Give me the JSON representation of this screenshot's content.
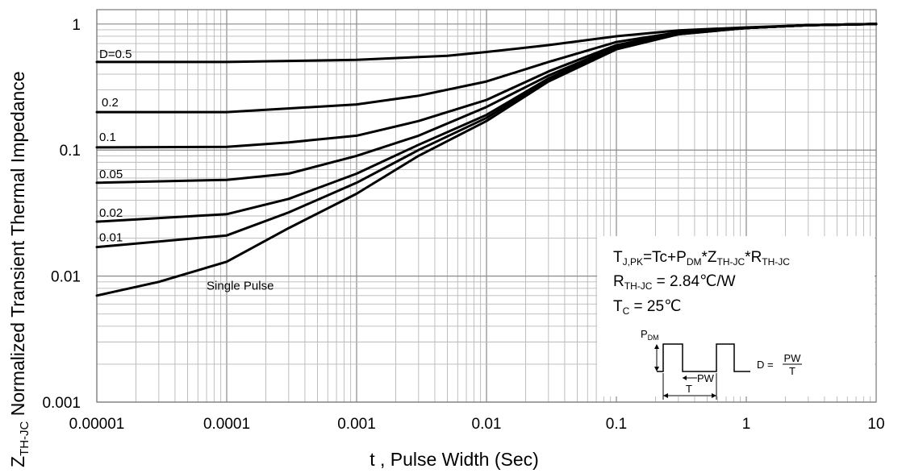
{
  "chart_data": {
    "type": "line",
    "x_scale": "log",
    "y_scale": "log",
    "xlim": [
      1e-05,
      10
    ],
    "ylim": [
      0.001,
      1.3
    ],
    "xlabel": "t , Pulse Width (Sec)",
    "ylabel_sub": "TH-JC",
    "ylabel_rest": " Normalized Transient Thermal Impedance",
    "x_ticks": [
      {
        "value": 1e-05,
        "label": "0.00001"
      },
      {
        "value": 0.0001,
        "label": "0.0001"
      },
      {
        "value": 0.001,
        "label": "0.001"
      },
      {
        "value": 0.01,
        "label": "0.01"
      },
      {
        "value": 0.1,
        "label": "0.1"
      },
      {
        "value": 1,
        "label": "1"
      },
      {
        "value": 10,
        "label": "10"
      }
    ],
    "y_ticks": [
      {
        "value": 0.001,
        "label": "0.001"
      },
      {
        "value": 0.01,
        "label": "0.01"
      },
      {
        "value": 0.1,
        "label": "0.1"
      },
      {
        "value": 1,
        "label": "1"
      }
    ],
    "grid": true,
    "series": [
      {
        "name": "D=0.5",
        "x": [
          1e-05,
          0.0001,
          0.001,
          0.005,
          0.01,
          0.03,
          0.1,
          0.3,
          1,
          3,
          10
        ],
        "y": [
          0.5,
          0.5,
          0.52,
          0.56,
          0.6,
          0.68,
          0.8,
          0.89,
          0.94,
          0.98,
          1.0
        ]
      },
      {
        "name": "0.2",
        "x": [
          1e-05,
          0.0001,
          0.001,
          0.003,
          0.01,
          0.03,
          0.1,
          0.3,
          1,
          3,
          10
        ],
        "y": [
          0.2,
          0.2,
          0.23,
          0.27,
          0.35,
          0.5,
          0.72,
          0.86,
          0.93,
          0.98,
          1.0
        ]
      },
      {
        "name": "0.1",
        "x": [
          1e-05,
          0.0001,
          0.0003,
          0.001,
          0.003,
          0.01,
          0.03,
          0.1,
          0.3,
          1,
          3,
          10
        ],
        "y": [
          0.105,
          0.106,
          0.115,
          0.13,
          0.17,
          0.25,
          0.42,
          0.68,
          0.85,
          0.93,
          0.98,
          1.0
        ]
      },
      {
        "name": "0.05",
        "x": [
          1e-05,
          0.0001,
          0.0003,
          0.001,
          0.003,
          0.01,
          0.03,
          0.1,
          0.3,
          1,
          3,
          10
        ],
        "y": [
          0.055,
          0.058,
          0.065,
          0.09,
          0.13,
          0.22,
          0.39,
          0.66,
          0.84,
          0.93,
          0.98,
          1.0
        ]
      },
      {
        "name": "0.02",
        "x": [
          1e-05,
          0.0001,
          0.0003,
          0.001,
          0.003,
          0.01,
          0.03,
          0.1,
          0.3,
          1,
          3,
          10
        ],
        "y": [
          0.027,
          0.031,
          0.041,
          0.065,
          0.11,
          0.19,
          0.37,
          0.65,
          0.84,
          0.93,
          0.98,
          1.0
        ]
      },
      {
        "name": "0.01",
        "x": [
          1e-05,
          0.0001,
          0.0003,
          0.001,
          0.003,
          0.01,
          0.03,
          0.1,
          0.3,
          1,
          3,
          10
        ],
        "y": [
          0.017,
          0.021,
          0.032,
          0.055,
          0.1,
          0.18,
          0.36,
          0.64,
          0.83,
          0.93,
          0.98,
          1.0
        ]
      },
      {
        "name": "Single Pulse",
        "x": [
          1e-05,
          3e-05,
          0.0001,
          0.0003,
          0.001,
          0.003,
          0.01,
          0.03,
          0.1,
          0.3,
          1,
          3,
          10
        ],
        "y": [
          0.007,
          0.009,
          0.013,
          0.024,
          0.045,
          0.09,
          0.17,
          0.35,
          0.63,
          0.83,
          0.93,
          0.98,
          1.0
        ]
      }
    ],
    "curve_labels": [
      {
        "text": "D=0.5",
        "series": 0
      },
      {
        "text": "0.2",
        "series": 1
      },
      {
        "text": "0.1",
        "series": 2
      },
      {
        "text": "0.05",
        "series": 3
      },
      {
        "text": "0.02",
        "series": 4
      },
      {
        "text": "0.01",
        "series": 5
      },
      {
        "text": "Single Pulse",
        "series": 6
      }
    ]
  },
  "info_box": {
    "line1": {
      "a": "T",
      "a_sub": "J,PK",
      "b": "=Tc+P",
      "b_sub": "DM",
      "c": "*Z",
      "c_sub": "TH-JC",
      "d": "*R",
      "d_sub": "TH-JC"
    },
    "line2": {
      "a": "R",
      "a_sub": "TH-JC",
      "b": " = 2.84℃/W"
    },
    "line3": {
      "a": "T",
      "a_sub": "C",
      "b": " = 25℃"
    },
    "diagram": {
      "pdm_main": "P",
      "pdm_sub": "DM",
      "pw_label": "PW",
      "t_label": "T",
      "d_label": "D =",
      "frac_num": "PW",
      "frac_den": "T"
    }
  }
}
